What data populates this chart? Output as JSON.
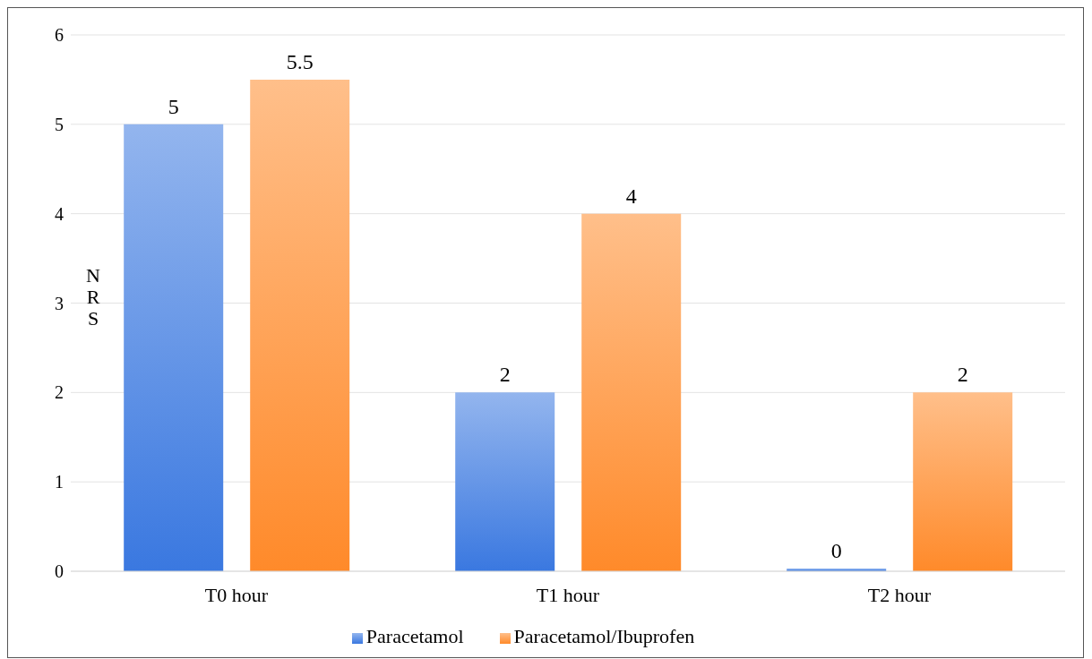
{
  "chart_data": {
    "type": "bar",
    "ylabel": "NRS",
    "categories": [
      "T0 hour",
      "T1 hour",
      "T2 hour"
    ],
    "series": [
      {
        "name": "Paracetamol",
        "color": "#3a78e0",
        "values": [
          5,
          2,
          0
        ]
      },
      {
        "name": "Paracetamol/Ibuprofen",
        "color": "#ff8a2a",
        "values": [
          5.5,
          4,
          2
        ]
      }
    ],
    "ylim": [
      0,
      6
    ],
    "yticks": [
      0,
      1,
      2,
      3,
      4,
      5,
      6
    ],
    "grid": "y",
    "legend": "bottom",
    "data_labels": true
  }
}
